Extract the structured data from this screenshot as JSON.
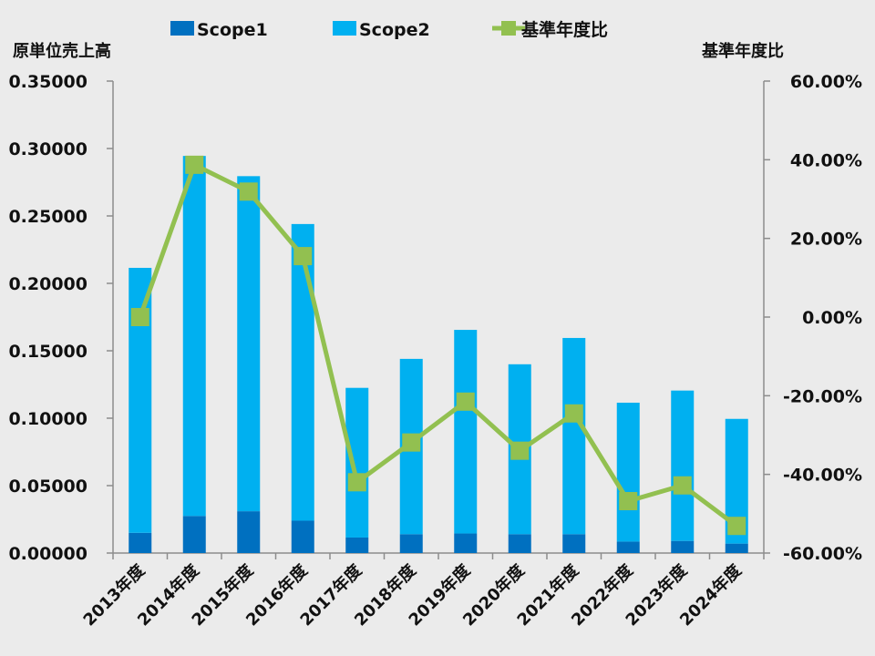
{
  "chart_data": {
    "type": "bar",
    "stacked": true,
    "categories": [
      "2013年度",
      "2014年度",
      "2015年度",
      "2016年度",
      "2017年度",
      "2018年度",
      "2019年度",
      "2020年度",
      "2021年度",
      "2022年度",
      "2023年度",
      "2024年度"
    ],
    "series": [
      {
        "name": "Scope1",
        "kind": "bar",
        "axis": "left",
        "color": "#0070c0",
        "values": [
          0.015,
          0.0275,
          0.031,
          0.024,
          0.0115,
          0.014,
          0.0145,
          0.014,
          0.014,
          0.0085,
          0.009,
          0.007
        ]
      },
      {
        "name": "Scope2",
        "kind": "bar",
        "axis": "left",
        "color": "#00b0f0",
        "values": [
          0.1965,
          0.267,
          0.2485,
          0.22,
          0.111,
          0.13,
          0.151,
          0.126,
          0.1455,
          0.103,
          0.1115,
          0.0925
        ]
      },
      {
        "name": "基準年度比",
        "kind": "line",
        "axis": "right",
        "color": "#92c050",
        "values": [
          0.0,
          38.72,
          31.9,
          15.5,
          -42.0,
          -31.89,
          -21.5,
          -33.98,
          -24.5,
          -46.8,
          -42.8,
          -53.1
        ]
      }
    ],
    "ylabel_left": "原単位売上高",
    "ylabel_right": "基準年度比",
    "ylim_left": [
      0,
      0.35
    ],
    "yticks_left": [
      "0.00000",
      "0.05000",
      "0.10000",
      "0.15000",
      "0.20000",
      "0.25000",
      "0.30000",
      "0.35000"
    ],
    "ylim_right": [
      -60,
      60
    ],
    "yticks_right": [
      "-60.00%",
      "-40.00%",
      "-20.00%",
      "0.00%",
      "20.00%",
      "40.00%",
      "60.00%"
    ],
    "legend_position": "top",
    "grid": false
  }
}
